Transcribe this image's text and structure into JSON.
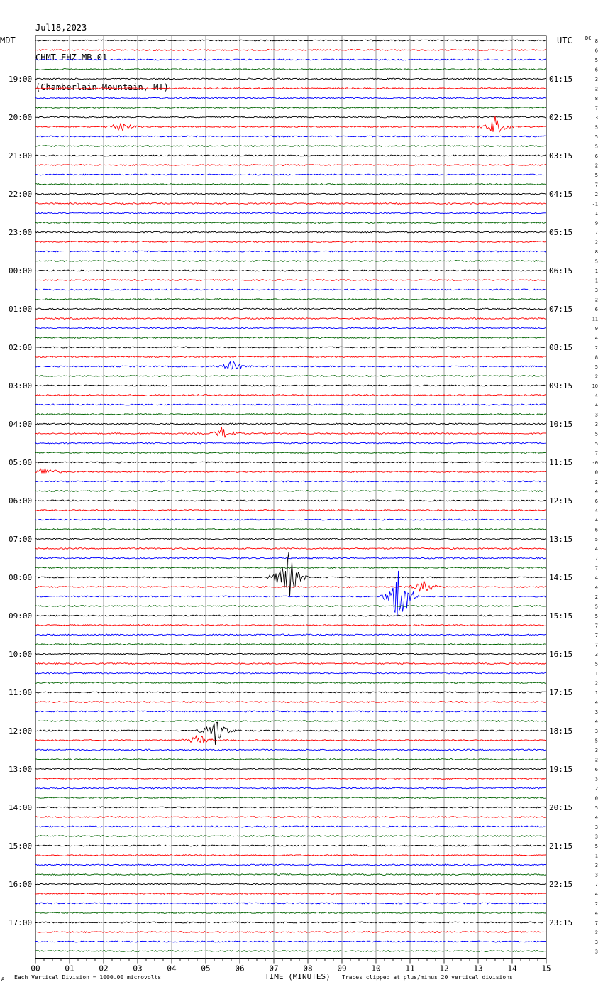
{
  "header": {
    "date": "Jul18,2023",
    "station": "CHMT EHZ MB 01",
    "location": "(Chamberlain Mountain, MT)"
  },
  "left_tz": "MDT",
  "right_tz": "UTC",
  "dc_label": "DC",
  "footer": {
    "scale_note": "Each Vertical Division = 1000.00 microvolts",
    "clip_note": "Traces clipped at plus/minus 20 vertical divisions",
    "corner_mark": "A"
  },
  "colors": {
    "trace_cycle": [
      "#000000",
      "#ff0000",
      "#0000ff",
      "#006400"
    ],
    "grid": "#808080"
  },
  "chart_data": {
    "type": "line",
    "title": "CHMT EHZ MB 01",
    "xlabel": "TIME (MINUTES)",
    "ylabel": "",
    "x_ticks": [
      "00",
      "01",
      "02",
      "03",
      "04",
      "05",
      "06",
      "07",
      "08",
      "09",
      "10",
      "11",
      "12",
      "13",
      "14",
      "15"
    ],
    "xlim": [
      0,
      15
    ],
    "minutes_per_line": 15,
    "line_count": 96,
    "left_hour_labels": [
      "19:00",
      "20:00",
      "21:00",
      "22:00",
      "23:00",
      "00:00",
      "01:00",
      "02:00",
      "03:00",
      "04:00",
      "05:00",
      "06:00",
      "07:00",
      "08:00",
      "09:00",
      "10:00",
      "11:00",
      "12:00",
      "13:00",
      "14:00",
      "15:00",
      "16:00",
      "17:00"
    ],
    "right_hour_labels": [
      "01:15",
      "02:15",
      "03:15",
      "04:15",
      "05:15",
      "06:15",
      "07:15",
      "08:15",
      "09:15",
      "10:15",
      "11:15",
      "12:15",
      "13:15",
      "14:15",
      "15:15",
      "16:15",
      "17:15",
      "18:15",
      "19:15",
      "20:15",
      "21:15",
      "22:15",
      "23:15"
    ],
    "dc_offsets": [
      "8",
      "6",
      "5",
      "6",
      "3",
      "-2",
      "8",
      "7",
      "3",
      "5",
      "5",
      "5",
      "6",
      "2",
      "5",
      "7",
      "2",
      "-1",
      "1",
      "9",
      "7",
      "2",
      "8",
      "5",
      "1",
      "1",
      "3",
      "2",
      "6",
      "11",
      "9",
      "4",
      "2",
      "8",
      "5",
      "2",
      "10",
      "4",
      "4",
      "3",
      "3",
      "5",
      "5",
      "7",
      "-0",
      "0",
      "2",
      "4",
      "6",
      "4",
      "4",
      "6",
      "5",
      "4",
      "7",
      "7",
      "4",
      "4",
      "2",
      "5",
      "5",
      "7",
      "7",
      "7",
      "3",
      "5",
      "1",
      "2",
      "1",
      "4",
      "3",
      "4",
      "3",
      "-5",
      "3",
      "2",
      "6",
      "3",
      "2",
      "0",
      "5",
      "4",
      "3",
      "3",
      "5",
      "1",
      "3",
      "3",
      "7",
      "4",
      "2",
      "4",
      "7",
      "2",
      "3",
      "3"
    ],
    "events": [
      {
        "line": 9,
        "minute": 2.5,
        "amplitude": 3
      },
      {
        "line": 9,
        "minute": 13.5,
        "amplitude": 5
      },
      {
        "line": 34,
        "minute": 5.8,
        "amplitude": 3
      },
      {
        "line": 41,
        "minute": 5.5,
        "amplitude": 3
      },
      {
        "line": 45,
        "minute": 0.3,
        "amplitude": 3
      },
      {
        "line": 58,
        "minute": 10.7,
        "amplitude": 20
      },
      {
        "line": 57,
        "minute": 11.4,
        "amplitude": 4
      },
      {
        "line": 56,
        "minute": 7.4,
        "amplitude": 16
      },
      {
        "line": 72,
        "minute": 5.3,
        "amplitude": 8
      },
      {
        "line": 73,
        "minute": 4.8,
        "amplitude": 3
      }
    ]
  }
}
